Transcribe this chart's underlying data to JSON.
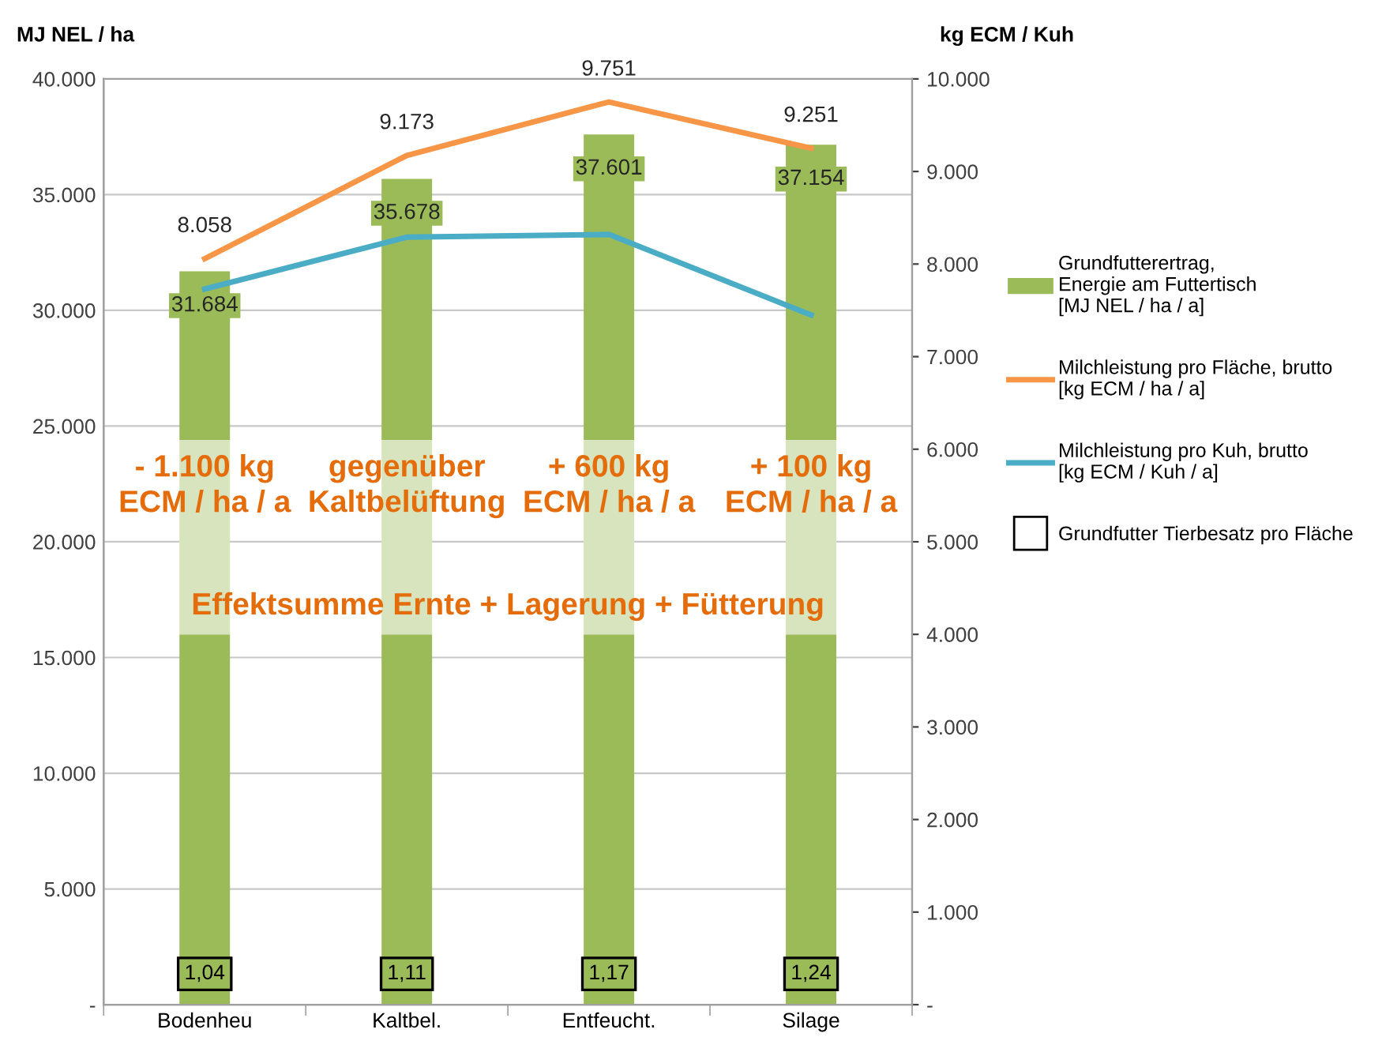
{
  "chart_data": {
    "type": "bar",
    "stacked": true,
    "ylabel": "MJ NEL / ha",
    "y2label": "kg ECM / Kuh",
    "categories": [
      "Bodenheu",
      "Kaltbel.",
      "Entfeucht.",
      "Silage"
    ],
    "series": [
      {
        "name": "Grundfutterertrag,\nEnergie am Futtertisch\n[MJ NEL / ha / a]",
        "color": "#9bbb59",
        "values": [
          16000,
          16000,
          16000,
          16000
        ]
      },
      {
        "color": "#d7e4bd",
        "values": [
          8400,
          8400,
          8400,
          8400
        ]
      },
      {
        "color": "#9bbb59",
        "values": [
          7284,
          11278,
          13201,
          12754
        ]
      },
      {
        "name": "Milchleistung pro Fläche, brutto\n[kg ECM / ha / a]",
        "type": "line",
        "axis": "y2",
        "color": "#f79646",
        "values": [
          8058,
          9173,
          9751,
          9251
        ],
        "value_labels": [
          "8.058",
          "9.173",
          "9.751",
          "9.251"
        ]
      },
      {
        "name": "Milchleistung pro Kuh, brutto\n[kg ECM / Kuh / a]",
        "type": "line",
        "axis": "y2",
        "color": "#4bacc6",
        "values": [
          7730,
          8290,
          8320,
          7450
        ]
      },
      {
        "name": "Grundfutter Tierbesatz pro Fläche",
        "type": "scatter",
        "color": "#000000",
        "values": [
          null,
          null,
          null,
          null
        ],
        "value_labels": [
          "1,04",
          "1,11",
          "1,17",
          "1,24"
        ]
      }
    ],
    "totals": [
      "31.684",
      "35.678",
      "37.601",
      "37.154"
    ],
    "ylim": [
      0,
      40000
    ],
    "yticks": [
      {
        "value": 0,
        "label": "-"
      },
      {
        "value": 5000,
        "label": "5.000"
      },
      {
        "value": 10000,
        "label": "10.000"
      },
      {
        "value": 15000,
        "label": "15.000"
      },
      {
        "value": 20000,
        "label": "20.000"
      },
      {
        "value": 25000,
        "label": "25.000"
      },
      {
        "value": 30000,
        "label": "30.000"
      },
      {
        "value": 35000,
        "label": "35.000"
      },
      {
        "value": 40000,
        "label": "40.000"
      }
    ],
    "y2lim": [
      0,
      10000
    ],
    "y2ticks": [
      {
        "value": 0,
        "label": "-"
      },
      {
        "value": 1000,
        "label": "1.000"
      },
      {
        "value": 2000,
        "label": "2.000"
      },
      {
        "value": 3000,
        "label": "3.000"
      },
      {
        "value": 4000,
        "label": "4.000"
      },
      {
        "value": 5000,
        "label": "5.000"
      },
      {
        "value": 6000,
        "label": "6.000"
      },
      {
        "value": 7000,
        "label": "7.000"
      },
      {
        "value": 8000,
        "label": "8.000"
      },
      {
        "value": 9000,
        "label": "9.000"
      },
      {
        "value": 10000,
        "label": "10.000"
      }
    ],
    "grid": "y",
    "legend": "right",
    "annotations": [
      "- 1.100 kg\nECM / ha / a",
      "gegenüber\nKaltbelüftung",
      "+ 600 kg\nECM / ha / a",
      "+ 100 kg\nECM / ha / a",
      "Effektsumme Ernte + Lagerung + Fütterung"
    ]
  }
}
